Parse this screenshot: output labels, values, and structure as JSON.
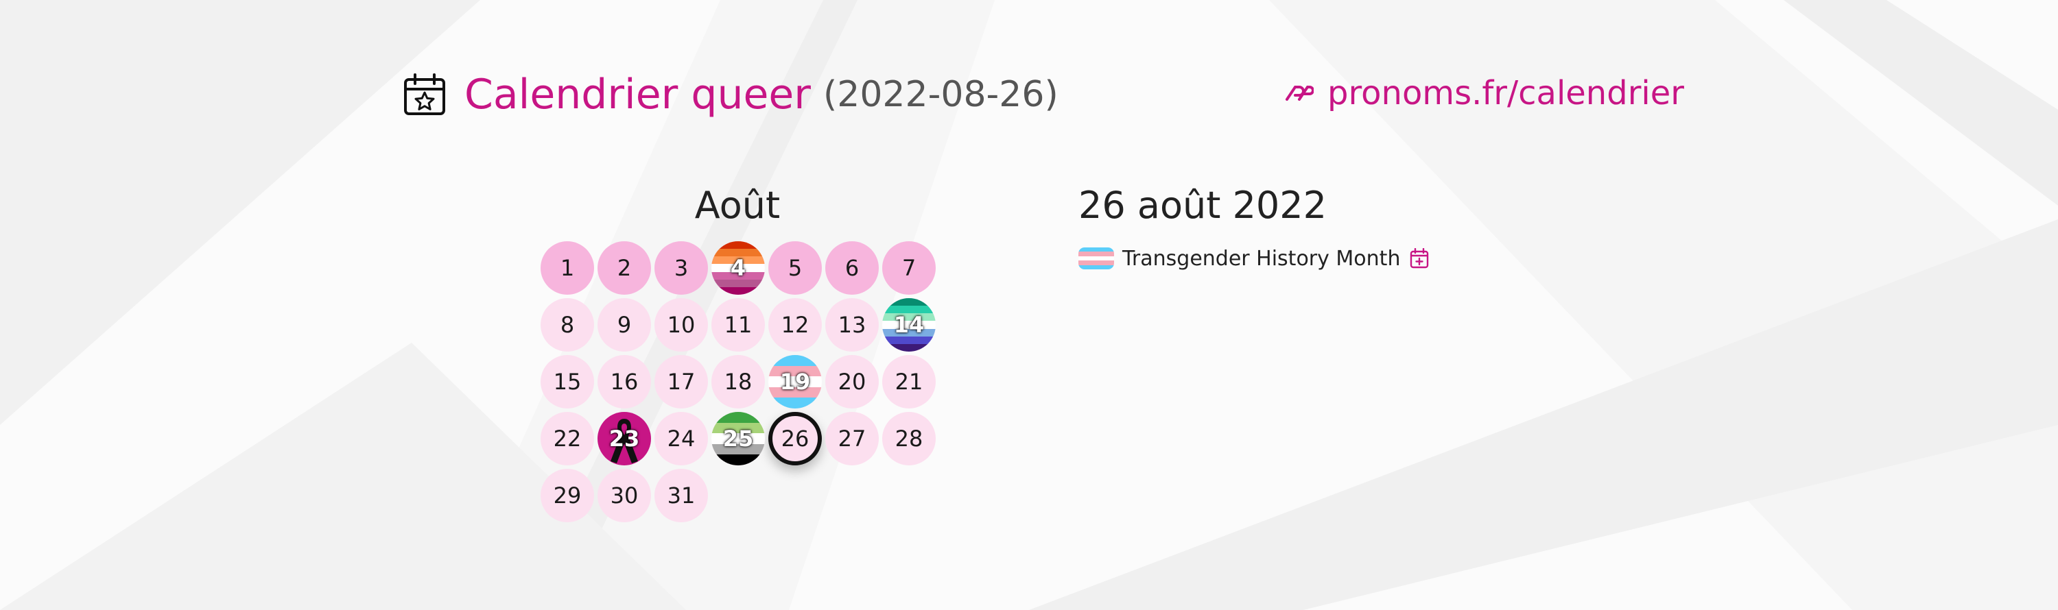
{
  "header": {
    "title": "Calendrier queer",
    "date": "(2022-08-26)",
    "site_link": "pronoms.fr/calendrier",
    "icons": {
      "calendar": "calendar-star-icon",
      "logo": "pronoms-logo-icon"
    },
    "colors": {
      "accent": "#c71585"
    }
  },
  "calendar": {
    "month": "Août",
    "days": [
      {
        "label": "1",
        "state": "past"
      },
      {
        "label": "2",
        "state": "past"
      },
      {
        "label": "3",
        "state": "past"
      },
      {
        "label": "4",
        "state": "past",
        "flag": "lesbian"
      },
      {
        "label": "5",
        "state": "past"
      },
      {
        "label": "6",
        "state": "past"
      },
      {
        "label": "7",
        "state": "past"
      },
      {
        "label": "8",
        "state": "future"
      },
      {
        "label": "9",
        "state": "future"
      },
      {
        "label": "10",
        "state": "future"
      },
      {
        "label": "11",
        "state": "future"
      },
      {
        "label": "12",
        "state": "future"
      },
      {
        "label": "13",
        "state": "future"
      },
      {
        "label": "14",
        "state": "future",
        "flag": "gay-men"
      },
      {
        "label": "15",
        "state": "future"
      },
      {
        "label": "16",
        "state": "future"
      },
      {
        "label": "17",
        "state": "future"
      },
      {
        "label": "18",
        "state": "future"
      },
      {
        "label": "19",
        "state": "future",
        "flag": "transgender"
      },
      {
        "label": "20",
        "state": "future"
      },
      {
        "label": "21",
        "state": "future"
      },
      {
        "label": "22",
        "state": "future"
      },
      {
        "label": "23",
        "state": "future",
        "flag": "ribbon"
      },
      {
        "label": "24",
        "state": "future"
      },
      {
        "label": "25",
        "state": "future",
        "flag": "aromantic"
      },
      {
        "label": "26",
        "state": "today"
      },
      {
        "label": "27",
        "state": "future"
      },
      {
        "label": "28",
        "state": "future"
      },
      {
        "label": "29",
        "state": "future"
      },
      {
        "label": "30",
        "state": "future"
      },
      {
        "label": "31",
        "state": "future"
      }
    ],
    "flags": {
      "lesbian": [
        "#d52d00",
        "#ef7627",
        "#ff9a56",
        "#ffffff",
        "#d162a4",
        "#b55690",
        "#a30262"
      ],
      "gay-men": [
        "#078d70",
        "#26ceaa",
        "#98e8c1",
        "#ffffff",
        "#7bade2",
        "#5049cc",
        "#3d1a78"
      ],
      "transgender": [
        "#5bcefa",
        "#f5a9b8",
        "#ffffff",
        "#f5a9b8",
        "#5bcefa"
      ],
      "aromantic": [
        "#3da542",
        "#a7d379",
        "#ffffff",
        "#a9a9a9",
        "#000000"
      ]
    },
    "colors": {
      "past": "#f7b5dd",
      "future": "#fcdfef",
      "ribbon": "#c71585"
    }
  },
  "selected": {
    "date": "26 août 2022",
    "events": [
      {
        "label": "Transgender History Month",
        "flag": "transgender",
        "icon": "calendar-plus-icon"
      }
    ]
  }
}
